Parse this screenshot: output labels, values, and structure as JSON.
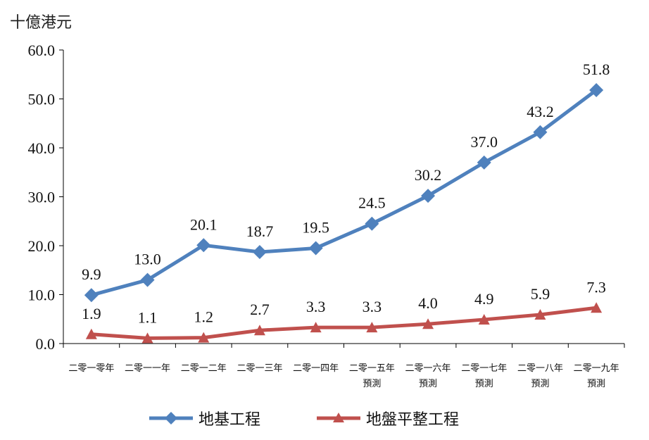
{
  "chart_data": {
    "type": "line",
    "unit_label": "十億港元",
    "categories": [
      [
        "二零一零年"
      ],
      [
        "二零一一年"
      ],
      [
        "二零一二年"
      ],
      [
        "二零一三年"
      ],
      [
        "二零一四年"
      ],
      [
        "二零一五年",
        "預測"
      ],
      [
        "二零一六年",
        "預測"
      ],
      [
        "二零一七年",
        "預測"
      ],
      [
        "二零一八年",
        "預測"
      ],
      [
        "二零一九年",
        "預測"
      ]
    ],
    "ylim": [
      0,
      60
    ],
    "yticks": [
      "0.0",
      "10.0",
      "20.0",
      "30.0",
      "40.0",
      "50.0",
      "60.0"
    ],
    "grid": false,
    "legend_position": "bottom",
    "series": [
      {
        "name": "地基工程",
        "color": "#4f81bd",
        "marker": "diamond",
        "values": [
          9.9,
          13.0,
          20.1,
          18.7,
          19.5,
          24.5,
          30.2,
          37.0,
          43.2,
          51.8
        ],
        "labels": [
          "9.9",
          "13.0",
          "20.1",
          "18.7",
          "19.5",
          "24.5",
          "30.2",
          "37.0",
          "43.2",
          "51.8"
        ]
      },
      {
        "name": "地盤平整工程",
        "color": "#c0504d",
        "marker": "triangle",
        "values": [
          1.9,
          1.1,
          1.2,
          2.7,
          3.3,
          3.3,
          4.0,
          4.9,
          5.9,
          7.3
        ],
        "labels": [
          "1.9",
          "1.1",
          "1.2",
          "2.7",
          "3.3",
          "3.3",
          "4.0",
          "4.9",
          "5.9",
          "7.3"
        ]
      }
    ]
  }
}
